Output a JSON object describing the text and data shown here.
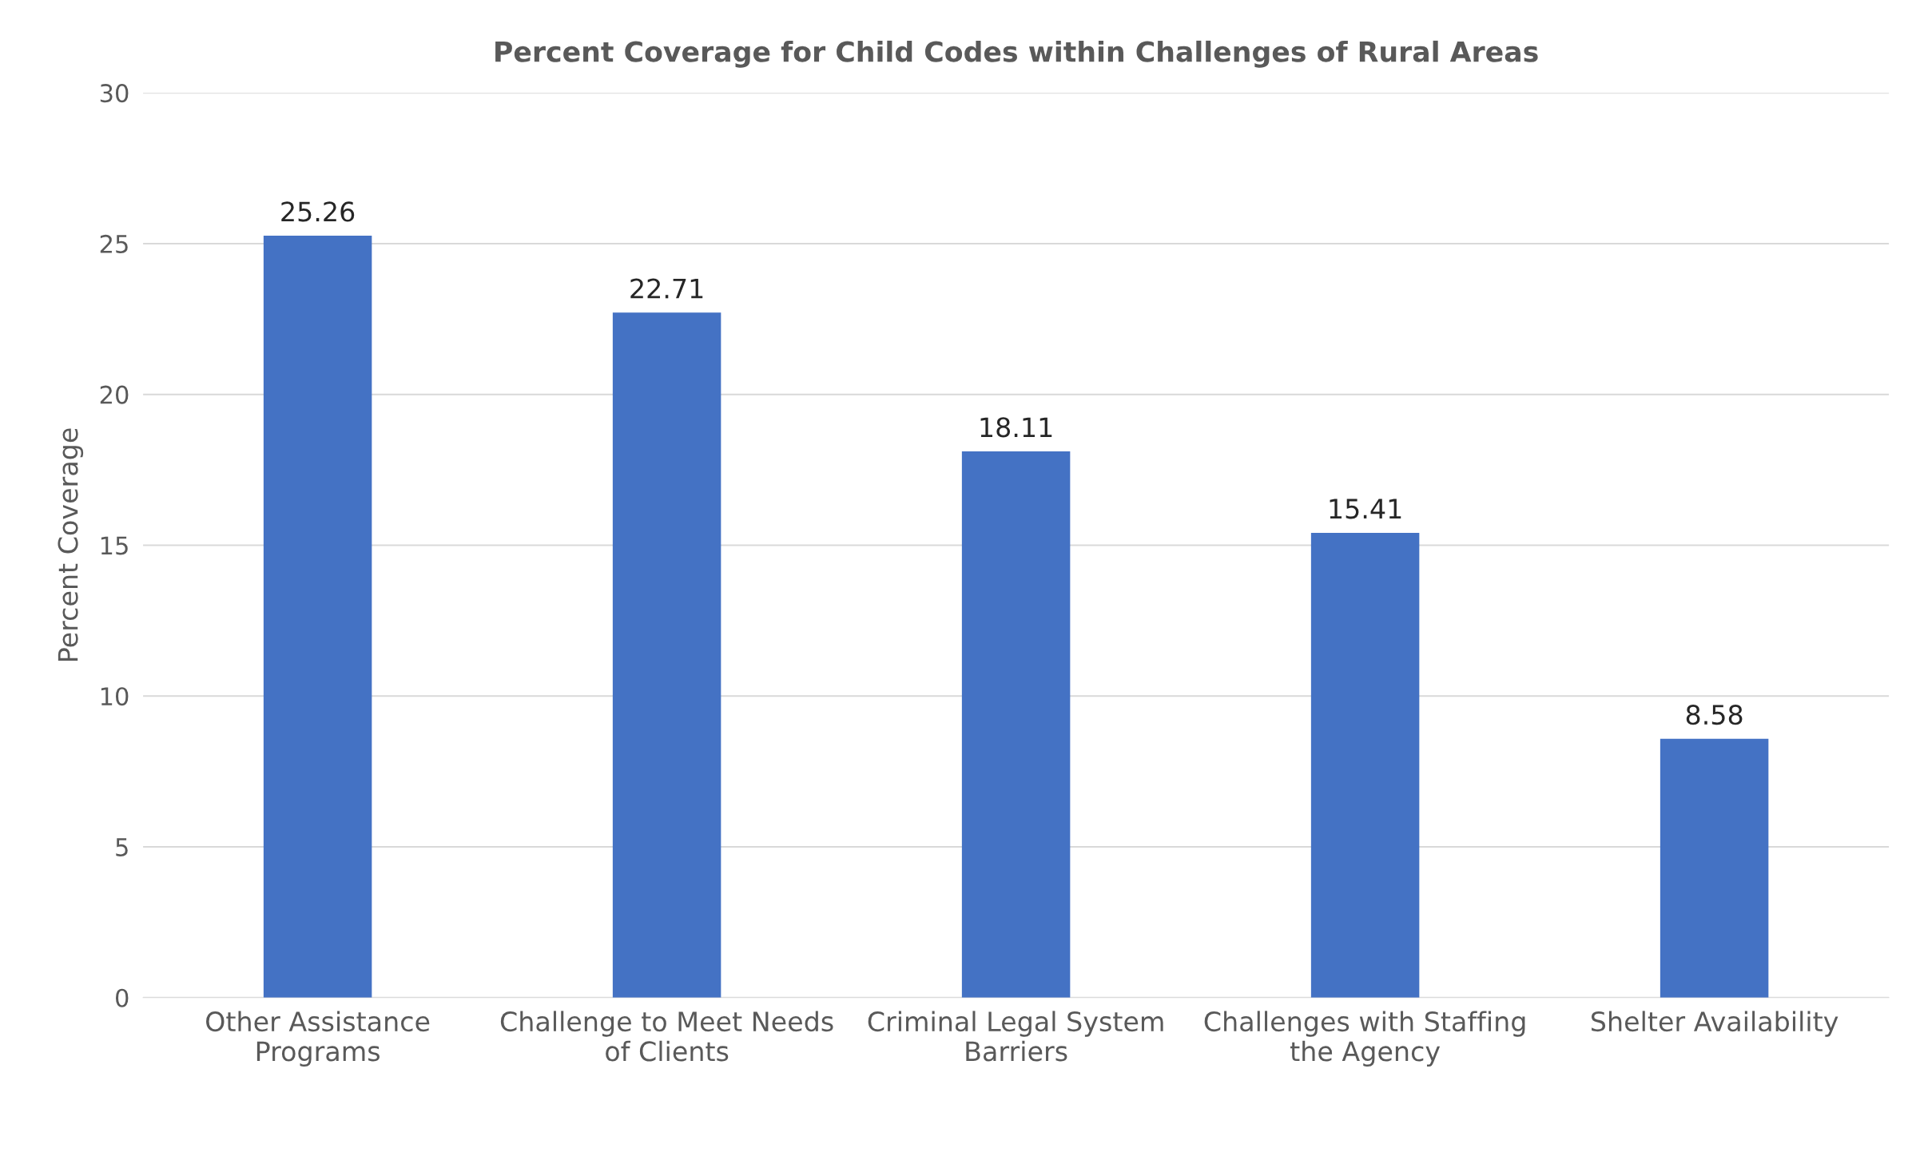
{
  "chart_data": {
    "type": "bar",
    "title": "Percent Coverage for Child Codes within Challenges of Rural Areas",
    "ylabel": "Percent Coverage",
    "categories": [
      "Other Assistance\nPrograms",
      "Challenge to Meet Needs\nof Clients",
      "Criminal Legal System\nBarriers",
      "Challenges with Staffing\nthe Agency",
      "Shelter Availability"
    ],
    "values": [
      25.26,
      22.71,
      18.11,
      15.41,
      8.58
    ],
    "color": "#4472c4",
    "ylim": [
      0,
      30
    ],
    "yticks": [
      0,
      5,
      10,
      15,
      20,
      25,
      30
    ],
    "grid": "y",
    "data_labels": true
  }
}
